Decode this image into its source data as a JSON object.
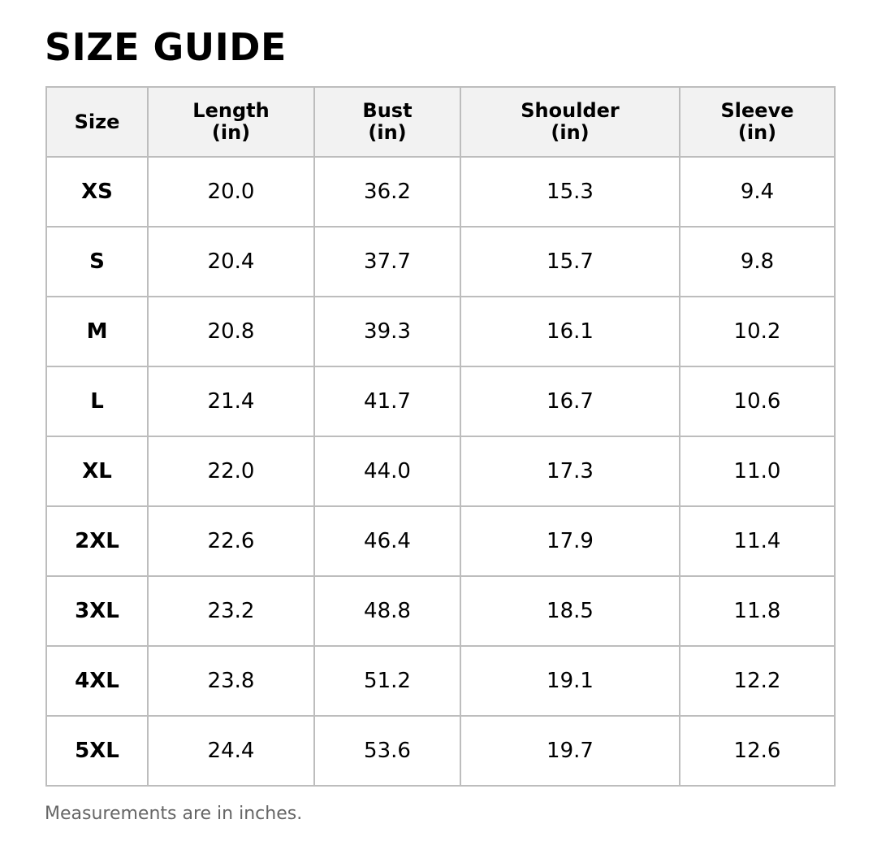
{
  "title": "SIZE GUIDE",
  "table": {
    "header": [
      "Size",
      "Length\n(in)",
      "Bust\n(in)",
      "Shoulder\n(in)",
      "Sleeve\n(in)"
    ],
    "rows": [
      [
        "XS",
        "20.0",
        "36.2",
        "15.3",
        "9.4"
      ],
      [
        "S",
        "20.4",
        "37.7",
        "15.7",
        "9.8"
      ],
      [
        "M",
        "20.8",
        "39.3",
        "16.1",
        "10.2"
      ],
      [
        "L",
        "21.4",
        "41.7",
        "16.7",
        "10.6"
      ],
      [
        "XL",
        "22.0",
        "44.0",
        "17.3",
        "11.0"
      ],
      [
        "2XL",
        "22.6",
        "46.4",
        "17.9",
        "11.4"
      ],
      [
        "3XL",
        "23.2",
        "48.8",
        "18.5",
        "11.8"
      ],
      [
        "4XL",
        "23.8",
        "51.2",
        "19.1",
        "12.2"
      ],
      [
        "5XL",
        "24.4",
        "53.6",
        "19.7",
        "12.6"
      ]
    ]
  },
  "note": "Measurements are in inches."
}
